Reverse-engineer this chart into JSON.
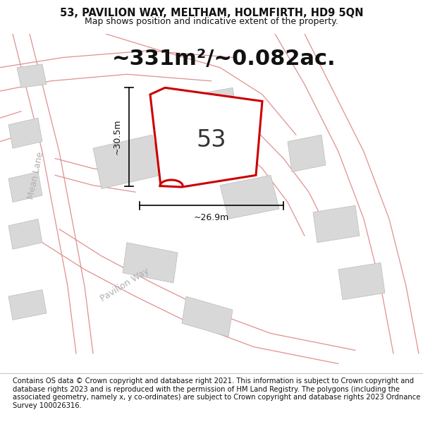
{
  "title_line1": "53, PAVILION WAY, MELTHAM, HOLMFIRTH, HD9 5QN",
  "title_line2": "Map shows position and indicative extent of the property.",
  "area_text": "~331m²/~0.082ac.",
  "label_53": "53",
  "dim_vertical": "~30.5m",
  "dim_horizontal": "~26.9m",
  "road_label_mean": "Mean Lane",
  "road_label_pavilion": "Pavilion Way",
  "footer": "Contains OS data © Crown copyright and database right 2021. This information is subject to Crown copyright and database rights 2023 and is reproduced with the permission of HM Land Registry. The polygons (including the associated geometry, namely x, y co-ordinates) are subject to Crown copyright and database rights 2023 Ordnance Survey 100026316.",
  "bg_color": "#ffffff",
  "building_color": "#d8d8d8",
  "building_edge": "#bbbbbb",
  "road_line_color": "#e09090",
  "plot_edge": "#cc0000",
  "title_fontsize": 10.5,
  "subtitle_fontsize": 9,
  "area_fontsize": 22,
  "label_fontsize": 24,
  "dim_fontsize": 9,
  "road_fontsize": 9,
  "footer_fontsize": 7.2
}
